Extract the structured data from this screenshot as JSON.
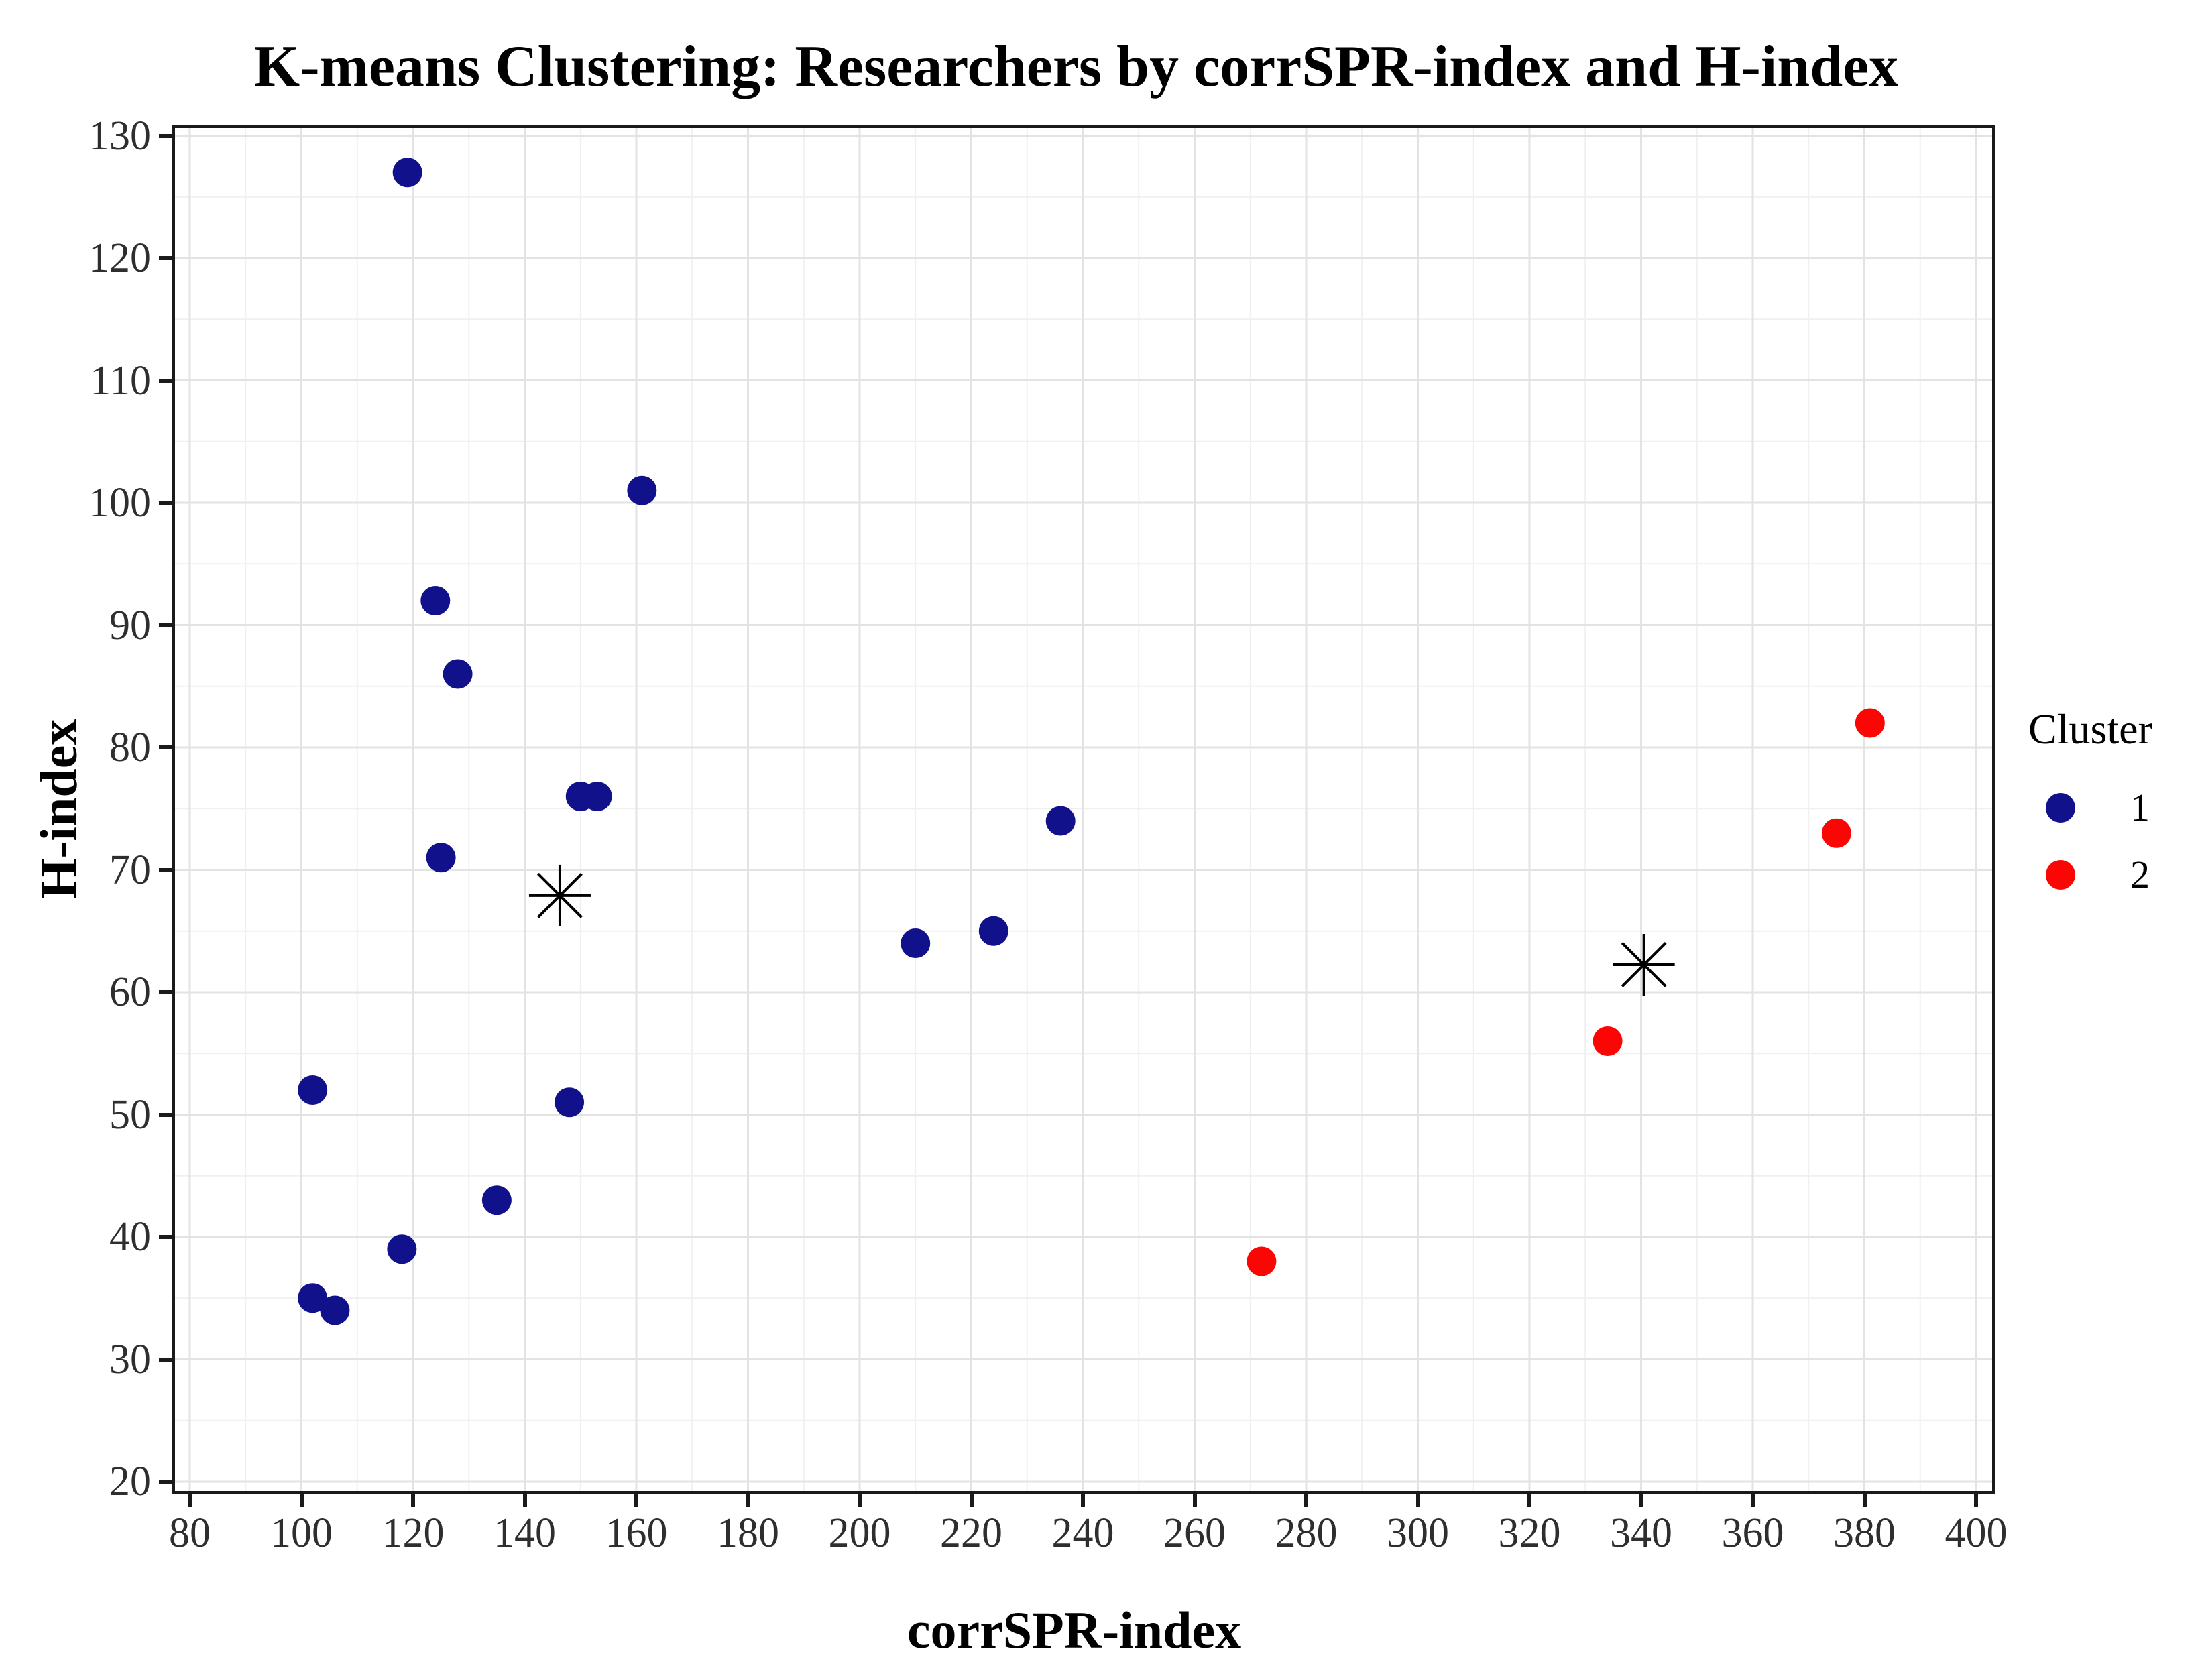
{
  "title": "K-means Clustering: Researchers by corrSPR-index and H-index",
  "chart_data": {
    "type": "scatter",
    "title": "K-means Clustering: Researchers by corrSPR-index and H-index",
    "xlabel": "corrSPR-index",
    "ylabel": "H-index",
    "xlim": [
      80,
      400
    ],
    "ylim": [
      20,
      130
    ],
    "x_ticks": [
      80,
      100,
      120,
      140,
      160,
      180,
      200,
      220,
      240,
      260,
      280,
      300,
      320,
      340,
      360,
      380,
      400
    ],
    "y_ticks": [
      20,
      30,
      40,
      50,
      60,
      70,
      80,
      90,
      100,
      110,
      120,
      130
    ],
    "x_minor_step": 10,
    "y_minor_step": 5,
    "grid": "on",
    "legend_position": "right",
    "series": [
      {
        "name": "1",
        "color": "#11118C",
        "points": [
          [
            119,
            127
          ],
          [
            161,
            101
          ],
          [
            124,
            92
          ],
          [
            128,
            86
          ],
          [
            150,
            76
          ],
          [
            153,
            76
          ],
          [
            125,
            71
          ],
          [
            236,
            74
          ],
          [
            224,
            65
          ],
          [
            210,
            64
          ],
          [
            102,
            52
          ],
          [
            148,
            51
          ],
          [
            135,
            43
          ],
          [
            118,
            39
          ],
          [
            102,
            35
          ],
          [
            106,
            34
          ]
        ]
      },
      {
        "name": "2",
        "color": "#FB0505",
        "points": [
          [
            381,
            82
          ],
          [
            375,
            73
          ],
          [
            334,
            56
          ],
          [
            272,
            38
          ]
        ]
      }
    ],
    "centroids": [
      {
        "cluster": "1",
        "x": 146.3,
        "y": 67.9
      },
      {
        "cluster": "2",
        "x": 340.5,
        "y": 62.25
      }
    ]
  },
  "legend": {
    "title": "Cluster"
  },
  "colors": {
    "cluster1": "#11118C",
    "cluster2": "#FB0505",
    "grid_major": "#E3E3E3",
    "grid_minor": "#F0F0F0",
    "panel_border": "#1a1a1a",
    "tick_text": "#2e2e2e",
    "centroid": "#000000"
  }
}
